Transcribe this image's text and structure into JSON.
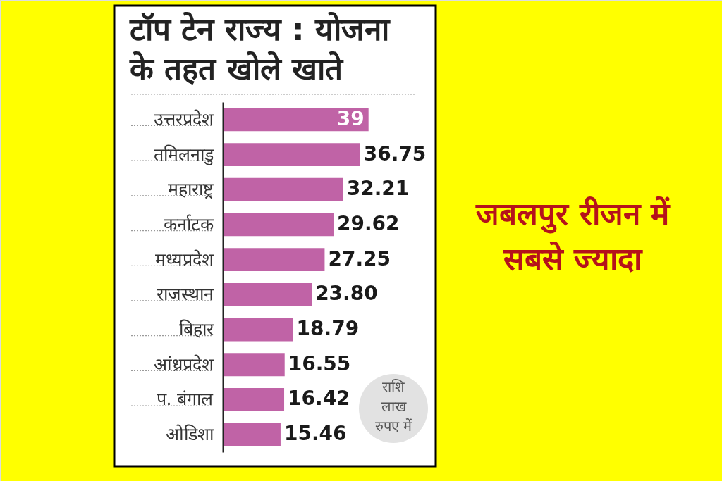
{
  "chart_data": {
    "type": "bar",
    "orientation": "horizontal",
    "title": "टॉप टेन राज्य : योजना के तहत खोले खाते",
    "categories": [
      "उत्तरप्रदेश",
      "तमिलनाडु",
      "महाराष्ट्र",
      "कर्नाटक",
      "मध्यप्रदेश",
      "राजस्थान",
      "बिहार",
      "आंध्रप्रदेश",
      "प. बंगाल",
      "ओडिशा"
    ],
    "values": [
      39,
      36.75,
      32.21,
      29.62,
      27.25,
      23.8,
      18.79,
      16.55,
      16.42,
      15.46
    ],
    "value_labels": [
      "39",
      "36.75",
      "32.21",
      "29.62",
      "27.25",
      "23.80",
      "18.79",
      "16.55",
      "16.42",
      "15.46"
    ],
    "color": "#c063a6",
    "annotations": [
      "राशि लाख रुपए में",
      "जबलपुर रीजन में सबसे ज्यादा"
    ]
  }
}
